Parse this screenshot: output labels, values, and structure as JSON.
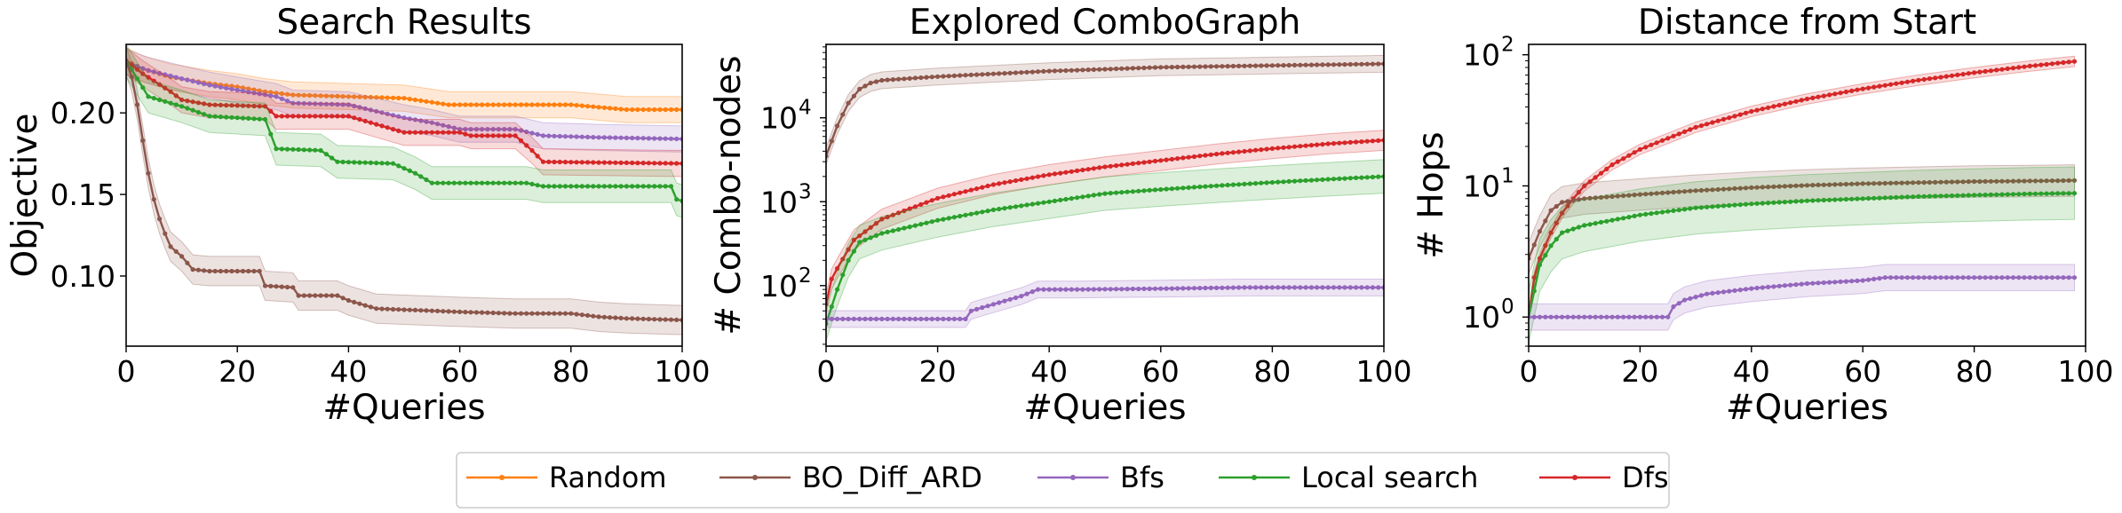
{
  "legend": {
    "items": [
      {
        "label": "Random",
        "color": "#ff7f0e"
      },
      {
        "label": "BO_Diff_ARD",
        "color": "#8c564b"
      },
      {
        "label": "Bfs",
        "color": "#9467bd"
      },
      {
        "label": "Local search",
        "color": "#2ca02c"
      },
      {
        "label": "Dfs",
        "color": "#d62728"
      }
    ]
  },
  "chart_data": [
    {
      "type": "line",
      "title": "Search Results",
      "xlabel": "#Queries",
      "ylabel": "Objective",
      "yscale": "linear",
      "xlim": [
        0,
        100
      ],
      "ylim": [
        0.057,
        0.242
      ],
      "xticks": [
        0,
        20,
        40,
        60,
        80,
        100
      ],
      "yticks": [
        0.1,
        0.15,
        0.2
      ],
      "ytick_labels": [
        "0.10",
        "0.15",
        "0.20"
      ],
      "grid": false,
      "series": [
        {
          "name": "Random",
          "color": "#ff7f0e",
          "points": [
            [
              0,
              0.232
            ],
            [
              3,
              0.227
            ],
            [
              8,
              0.222
            ],
            [
              15,
              0.218
            ],
            [
              20,
              0.216
            ],
            [
              25,
              0.213
            ],
            [
              30,
              0.211
            ],
            [
              40,
              0.21
            ],
            [
              50,
              0.209
            ],
            [
              58,
              0.205
            ],
            [
              70,
              0.205
            ],
            [
              80,
              0.205
            ],
            [
              90,
              0.202
            ],
            [
              100,
              0.202
            ]
          ],
          "band": 0.008
        },
        {
          "name": "Bfs",
          "color": "#9467bd",
          "points": [
            [
              0,
              0.231
            ],
            [
              4,
              0.226
            ],
            [
              10,
              0.221
            ],
            [
              15,
              0.217
            ],
            [
              20,
              0.214
            ],
            [
              27,
              0.21
            ],
            [
              30,
              0.206
            ],
            [
              40,
              0.205
            ],
            [
              45,
              0.201
            ],
            [
              50,
              0.197
            ],
            [
              55,
              0.194
            ],
            [
              60,
              0.19
            ],
            [
              70,
              0.19
            ],
            [
              75,
              0.186
            ],
            [
              85,
              0.185
            ],
            [
              100,
              0.184
            ]
          ],
          "band": 0.008
        },
        {
          "name": "Dfs",
          "color": "#d62728",
          "points": [
            [
              0,
              0.232
            ],
            [
              3,
              0.224
            ],
            [
              8,
              0.213
            ],
            [
              10,
              0.208
            ],
            [
              15,
              0.205
            ],
            [
              25,
              0.204
            ],
            [
              27,
              0.198
            ],
            [
              40,
              0.198
            ],
            [
              45,
              0.193
            ],
            [
              50,
              0.188
            ],
            [
              60,
              0.188
            ],
            [
              62,
              0.186
            ],
            [
              70,
              0.186
            ],
            [
              73,
              0.177
            ],
            [
              75,
              0.17
            ],
            [
              100,
              0.169
            ]
          ],
          "band": 0.008
        },
        {
          "name": "Local search",
          "color": "#2ca02c",
          "points": [
            [
              0,
              0.232
            ],
            [
              4,
              0.21
            ],
            [
              10,
              0.204
            ],
            [
              15,
              0.198
            ],
            [
              25,
              0.196
            ],
            [
              27,
              0.178
            ],
            [
              35,
              0.177
            ],
            [
              38,
              0.17
            ],
            [
              48,
              0.169
            ],
            [
              52,
              0.163
            ],
            [
              55,
              0.157
            ],
            [
              72,
              0.157
            ],
            [
              75,
              0.155
            ],
            [
              98,
              0.155
            ],
            [
              99,
              0.147
            ],
            [
              100,
              0.146
            ]
          ],
          "band": 0.01
        },
        {
          "name": "BO_Diff_ARD",
          "color": "#8c564b",
          "points": [
            [
              0,
              0.232
            ],
            [
              1,
              0.222
            ],
            [
              2,
              0.205
            ],
            [
              3,
              0.183
            ],
            [
              4,
              0.163
            ],
            [
              5,
              0.147
            ],
            [
              6,
              0.135
            ],
            [
              7,
              0.126
            ],
            [
              8,
              0.118
            ],
            [
              10,
              0.112
            ],
            [
              12,
              0.104
            ],
            [
              15,
              0.103
            ],
            [
              24,
              0.103
            ],
            [
              25,
              0.094
            ],
            [
              30,
              0.093
            ],
            [
              31,
              0.088
            ],
            [
              38,
              0.088
            ],
            [
              40,
              0.085
            ],
            [
              45,
              0.08
            ],
            [
              60,
              0.078
            ],
            [
              70,
              0.077
            ],
            [
              80,
              0.077
            ],
            [
              85,
              0.075
            ],
            [
              90,
              0.074
            ],
            [
              100,
              0.073
            ]
          ],
          "band": 0.009
        }
      ]
    },
    {
      "type": "line",
      "title": "Explored ComboGraph",
      "xlabel": "#Queries",
      "ylabel": "# Combo-nodes",
      "yscale": "log",
      "xlim": [
        0,
        100
      ],
      "ylim": [
        19,
        75000
      ],
      "xticks": [
        0,
        20,
        40,
        60,
        80,
        100
      ],
      "yticks": [
        100,
        1000,
        10000
      ],
      "ytick_labels": [
        [
          "10",
          "2"
        ],
        [
          "10",
          "3"
        ],
        [
          "10",
          "4"
        ]
      ],
      "grid": false,
      "series": [
        {
          "name": "BO_Diff_ARD",
          "color": "#8c564b",
          "points": [
            [
              0,
              3500
            ],
            [
              2,
              8000
            ],
            [
              4,
              15000
            ],
            [
              6,
              22000
            ],
            [
              8,
              26000
            ],
            [
              10,
              28000
            ],
            [
              20,
              31000
            ],
            [
              40,
              36000
            ],
            [
              60,
              40000
            ],
            [
              80,
              42000
            ],
            [
              100,
              44000
            ]
          ],
          "band": 0.1
        },
        {
          "name": "Dfs",
          "color": "#d62728",
          "points": [
            [
              0,
              60
            ],
            [
              1,
              120
            ],
            [
              2,
              160
            ],
            [
              5,
              350
            ],
            [
              10,
              620
            ],
            [
              20,
              1100
            ],
            [
              30,
              1600
            ],
            [
              40,
              2100
            ],
            [
              50,
              2600
            ],
            [
              60,
              3100
            ],
            [
              70,
              3700
            ],
            [
              80,
              4300
            ],
            [
              90,
              4900
            ],
            [
              100,
              5400
            ]
          ],
          "band": 0.12
        },
        {
          "name": "Local search",
          "color": "#2ca02c",
          "points": [
            [
              0,
              35
            ],
            [
              2,
              90
            ],
            [
              4,
              200
            ],
            [
              6,
              330
            ],
            [
              10,
              420
            ],
            [
              20,
              600
            ],
            [
              30,
              800
            ],
            [
              40,
              1000
            ],
            [
              50,
              1250
            ],
            [
              60,
              1400
            ],
            [
              70,
              1550
            ],
            [
              80,
              1700
            ],
            [
              90,
              1850
            ],
            [
              100,
              2000
            ]
          ],
          "band": 0.2
        },
        {
          "name": "Bfs",
          "color": "#9467bd",
          "points": [
            [
              0,
              40
            ],
            [
              25,
              40
            ],
            [
              26,
              50
            ],
            [
              30,
              60
            ],
            [
              35,
              75
            ],
            [
              38,
              90
            ],
            [
              45,
              90
            ],
            [
              60,
              92
            ],
            [
              75,
              95
            ],
            [
              100,
              95
            ]
          ],
          "band": 0.1
        }
      ]
    },
    {
      "type": "line",
      "title": "Distance from Start",
      "xlabel": "#Queries",
      "ylabel": "# Hops",
      "yscale": "log",
      "xlim": [
        0,
        100
      ],
      "ylim": [
        0.6,
        120
      ],
      "xticks": [
        0,
        20,
        40,
        60,
        80,
        100
      ],
      "yticks": [
        1,
        10,
        100
      ],
      "ytick_labels": [
        [
          "10",
          "0"
        ],
        [
          "10",
          "1"
        ],
        [
          "10",
          "2"
        ]
      ],
      "grid": false,
      "series": [
        {
          "name": "Dfs",
          "color": "#d62728",
          "points": [
            [
              0,
              1
            ],
            [
              1,
              2
            ],
            [
              2,
              2.8
            ],
            [
              4,
              4.4
            ],
            [
              6,
              6.2
            ],
            [
              8,
              8
            ],
            [
              10,
              10
            ],
            [
              15,
              14.5
            ],
            [
              20,
              19
            ],
            [
              30,
              28
            ],
            [
              40,
              37
            ],
            [
              50,
              46
            ],
            [
              60,
              55
            ],
            [
              70,
              64
            ],
            [
              80,
              73
            ],
            [
              90,
              82
            ],
            [
              98,
              89
            ]
          ],
          "band": 0.04
        },
        {
          "name": "BO_Diff_ARD",
          "color": "#8c564b",
          "points": [
            [
              0,
              2.8
            ],
            [
              2,
              4.5
            ],
            [
              4,
              6.5
            ],
            [
              6,
              7.5
            ],
            [
              10,
              8
            ],
            [
              20,
              8.6
            ],
            [
              30,
              9.2
            ],
            [
              40,
              9.7
            ],
            [
              50,
              10.1
            ],
            [
              60,
              10.4
            ],
            [
              70,
              10.6
            ],
            [
              80,
              10.8
            ],
            [
              90,
              10.9
            ],
            [
              98,
              11
            ]
          ],
          "band": 0.12
        },
        {
          "name": "Local search",
          "color": "#2ca02c",
          "points": [
            [
              0,
              1
            ],
            [
              2,
              2.5
            ],
            [
              4,
              3.5
            ],
            [
              6,
              4.4
            ],
            [
              10,
              5
            ],
            [
              20,
              6
            ],
            [
              30,
              6.8
            ],
            [
              40,
              7.3
            ],
            [
              50,
              7.7
            ],
            [
              60,
              8
            ],
            [
              70,
              8.3
            ],
            [
              80,
              8.5
            ],
            [
              90,
              8.7
            ],
            [
              98,
              8.8
            ]
          ],
          "band": 0.2
        },
        {
          "name": "Bfs",
          "color": "#9467bd",
          "points": [
            [
              0,
              1
            ],
            [
              25,
              1
            ],
            [
              26,
              1.2
            ],
            [
              28,
              1.35
            ],
            [
              32,
              1.5
            ],
            [
              40,
              1.65
            ],
            [
              50,
              1.8
            ],
            [
              60,
              1.9
            ],
            [
              64,
              2
            ],
            [
              70,
              2
            ],
            [
              80,
              2
            ],
            [
              90,
              2
            ],
            [
              98,
              2
            ]
          ],
          "band": 0.1
        }
      ]
    }
  ]
}
